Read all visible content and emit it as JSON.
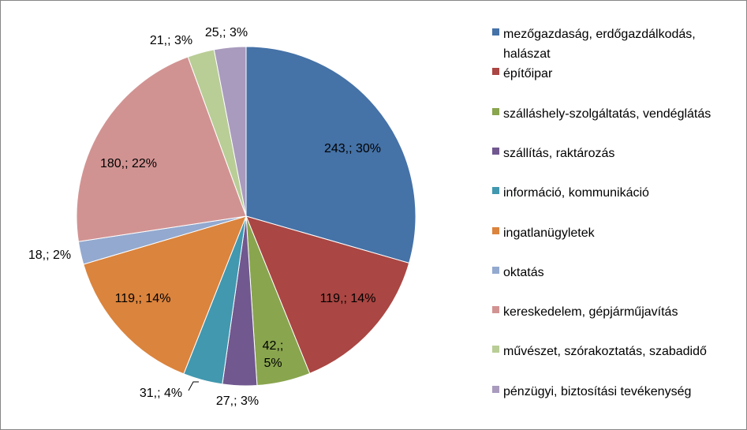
{
  "chart_data": {
    "type": "pie",
    "categories": [
      "mezőgazdaság, erdőgazdálkodás, halászat",
      "építőipar",
      "szálláshely-szolgáltatás, vendéglátás",
      "szállítás, raktározás",
      "információ, kommunikáció",
      "ingatlanügyletek",
      "oktatás",
      "kereskedelem, gépjárműjavítás",
      "művészet, szórakoztatás, szabadidő",
      "pénzügyi, biztosítási tevékenység"
    ],
    "values": [
      243,
      119,
      42,
      27,
      31,
      119,
      18,
      180,
      21,
      25
    ],
    "data_labels": [
      "243,; 30%",
      "119,; 14%",
      "42,; 5%",
      "27,; 3%",
      "31,; 4%",
      "119,; 14%",
      "18,; 2%",
      "180,; 22%",
      "21,; 3%",
      "25,; 3%"
    ],
    "colors": [
      "#4572A7",
      "#AA4643",
      "#89A54E",
      "#71588F",
      "#4198AF",
      "#DB843D",
      "#93A9CF",
      "#D19392",
      "#B9CD96",
      "#A99BBD"
    ],
    "legend_position": "right"
  }
}
